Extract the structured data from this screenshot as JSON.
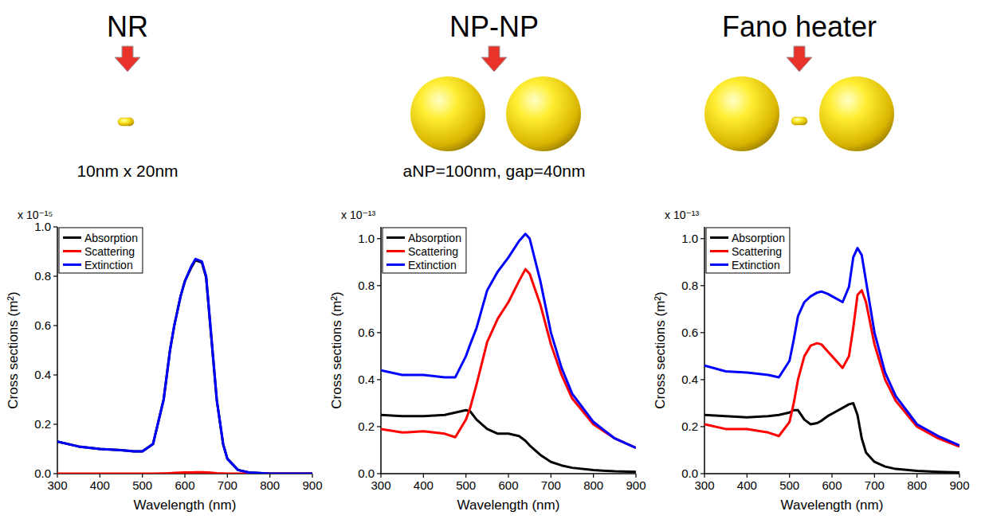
{
  "chart_data": [
    {
      "type": "line",
      "title": "NR",
      "subtitle": "10nm x 20nm",
      "y_scale_label": "x 10⁻¹⁵",
      "x_label": "Wavelength (nm)",
      "y_label": "Cross sections (m²)",
      "xlim": [
        300,
        900
      ],
      "xticks": [
        300,
        400,
        500,
        600,
        700,
        800,
        900
      ],
      "ylim": [
        0,
        1.0
      ],
      "yticks": [
        {
          "value": 0,
          "label": "0.0"
        },
        {
          "value": 0.2,
          "label": "0.2"
        },
        {
          "value": 0.4,
          "label": "0.4"
        },
        {
          "value": 0.6,
          "label": "0.6"
        },
        {
          "value": 0.8,
          "label": "0.8"
        },
        {
          "value": 1.0,
          "label": "1.0"
        }
      ],
      "legend": "upper left",
      "x": [
        300,
        350,
        400,
        450,
        480,
        500,
        525,
        550,
        565,
        575,
        590,
        600,
        615,
        625,
        640,
        650,
        660,
        675,
        690,
        700,
        725,
        750,
        800,
        850,
        900
      ],
      "series": [
        {
          "name": "Absorption",
          "color": "#000000",
          "values": [
            0.13,
            0.11,
            0.1,
            0.095,
            0.09,
            0.09,
            0.12,
            0.3,
            0.5,
            0.6,
            0.72,
            0.78,
            0.835,
            0.865,
            0.855,
            0.795,
            0.595,
            0.298,
            0.119,
            0.06,
            0.015,
            0.005,
            0,
            0,
            0
          ]
        },
        {
          "name": "Scattering",
          "color": "#ff0000",
          "values": [
            0,
            0,
            0,
            0,
            0,
            0,
            0,
            0.001,
            0.002,
            0.003,
            0.004,
            0.005,
            0.005,
            0.006,
            0.006,
            0.005,
            0.004,
            0.002,
            0.001,
            0,
            0,
            0,
            0,
            0,
            0
          ]
        },
        {
          "name": "Extinction",
          "color": "#0000ff",
          "values": [
            0.13,
            0.11,
            0.1,
            0.095,
            0.09,
            0.09,
            0.12,
            0.3,
            0.5,
            0.6,
            0.72,
            0.78,
            0.84,
            0.87,
            0.86,
            0.8,
            0.6,
            0.3,
            0.12,
            0.06,
            0.015,
            0.005,
            0,
            0,
            0
          ]
        }
      ]
    },
    {
      "type": "line",
      "title": "NP-NP",
      "subtitle": "aNP=100nm, gap=40nm",
      "y_scale_label": "x 10⁻¹³",
      "x_label": "Wavelength (nm)",
      "y_label": "Cross sections (m²)",
      "xlim": [
        300,
        900
      ],
      "xticks": [
        300,
        400,
        500,
        600,
        700,
        800,
        900
      ],
      "ylim": [
        0,
        1.05
      ],
      "yticks": [
        {
          "value": 0,
          "label": "0.0"
        },
        {
          "value": 0.2,
          "label": "0.2"
        },
        {
          "value": 0.4,
          "label": "0.4"
        },
        {
          "value": 0.6,
          "label": "0.6"
        },
        {
          "value": 0.8,
          "label": "0.8"
        },
        {
          "value": 1.0,
          "label": "1.0"
        }
      ],
      "legend": "upper left",
      "x": [
        300,
        350,
        400,
        450,
        475,
        500,
        510,
        525,
        550,
        575,
        600,
        625,
        640,
        650,
        675,
        700,
        725,
        750,
        800,
        850,
        900
      ],
      "series": [
        {
          "name": "Absorption",
          "color": "#000000",
          "values": [
            0.25,
            0.245,
            0.245,
            0.25,
            0.26,
            0.27,
            0.265,
            0.23,
            0.19,
            0.17,
            0.17,
            0.16,
            0.14,
            0.12,
            0.08,
            0.05,
            0.035,
            0.025,
            0.015,
            0.01,
            0.008
          ]
        },
        {
          "name": "Scattering",
          "color": "#ff0000",
          "values": [
            0.19,
            0.175,
            0.18,
            0.17,
            0.155,
            0.23,
            0.28,
            0.38,
            0.56,
            0.66,
            0.73,
            0.82,
            0.87,
            0.85,
            0.72,
            0.55,
            0.42,
            0.32,
            0.21,
            0.15,
            0.11
          ]
        },
        {
          "name": "Extinction",
          "color": "#0000ff",
          "values": [
            0.44,
            0.42,
            0.42,
            0.41,
            0.41,
            0.5,
            0.55,
            0.62,
            0.78,
            0.86,
            0.92,
            0.99,
            1.02,
            1.0,
            0.82,
            0.6,
            0.45,
            0.34,
            0.22,
            0.15,
            0.11
          ]
        }
      ]
    },
    {
      "type": "line",
      "title": "Fano heater",
      "y_scale_label": "x 10⁻¹³",
      "x_label": "Wavelength (nm)",
      "y_label": "Cross sections (m²)",
      "xlim": [
        300,
        900
      ],
      "xticks": [
        300,
        400,
        500,
        600,
        700,
        800,
        900
      ],
      "ylim": [
        0,
        1.05
      ],
      "yticks": [
        {
          "value": 0,
          "label": "0.0"
        },
        {
          "value": 0.2,
          "label": "0.2"
        },
        {
          "value": 0.4,
          "label": "0.4"
        },
        {
          "value": 0.6,
          "label": "0.6"
        },
        {
          "value": 0.8,
          "label": "0.8"
        },
        {
          "value": 1.0,
          "label": "1.0"
        }
      ],
      "legend": "upper left",
      "x": [
        300,
        350,
        400,
        450,
        475,
        500,
        510,
        520,
        535,
        550,
        565,
        575,
        590,
        600,
        625,
        640,
        650,
        660,
        670,
        680,
        700,
        725,
        750,
        800,
        850,
        900
      ],
      "series": [
        {
          "name": "Absorption",
          "color": "#000000",
          "values": [
            0.25,
            0.245,
            0.24,
            0.245,
            0.25,
            0.26,
            0.27,
            0.27,
            0.23,
            0.21,
            0.215,
            0.225,
            0.245,
            0.255,
            0.28,
            0.295,
            0.3,
            0.25,
            0.15,
            0.09,
            0.05,
            0.03,
            0.02,
            0.012,
            0.008,
            0.005
          ]
        },
        {
          "name": "Scattering",
          "color": "#ff0000",
          "values": [
            0.21,
            0.19,
            0.19,
            0.175,
            0.16,
            0.22,
            0.3,
            0.4,
            0.5,
            0.545,
            0.555,
            0.55,
            0.52,
            0.5,
            0.45,
            0.5,
            0.62,
            0.76,
            0.78,
            0.73,
            0.55,
            0.4,
            0.31,
            0.2,
            0.15,
            0.115
          ]
        },
        {
          "name": "Extinction",
          "color": "#0000ff",
          "values": [
            0.46,
            0.435,
            0.43,
            0.42,
            0.41,
            0.48,
            0.57,
            0.67,
            0.73,
            0.755,
            0.77,
            0.775,
            0.765,
            0.755,
            0.73,
            0.795,
            0.92,
            0.96,
            0.93,
            0.82,
            0.6,
            0.43,
            0.33,
            0.21,
            0.16,
            0.12
          ]
        }
      ]
    }
  ]
}
